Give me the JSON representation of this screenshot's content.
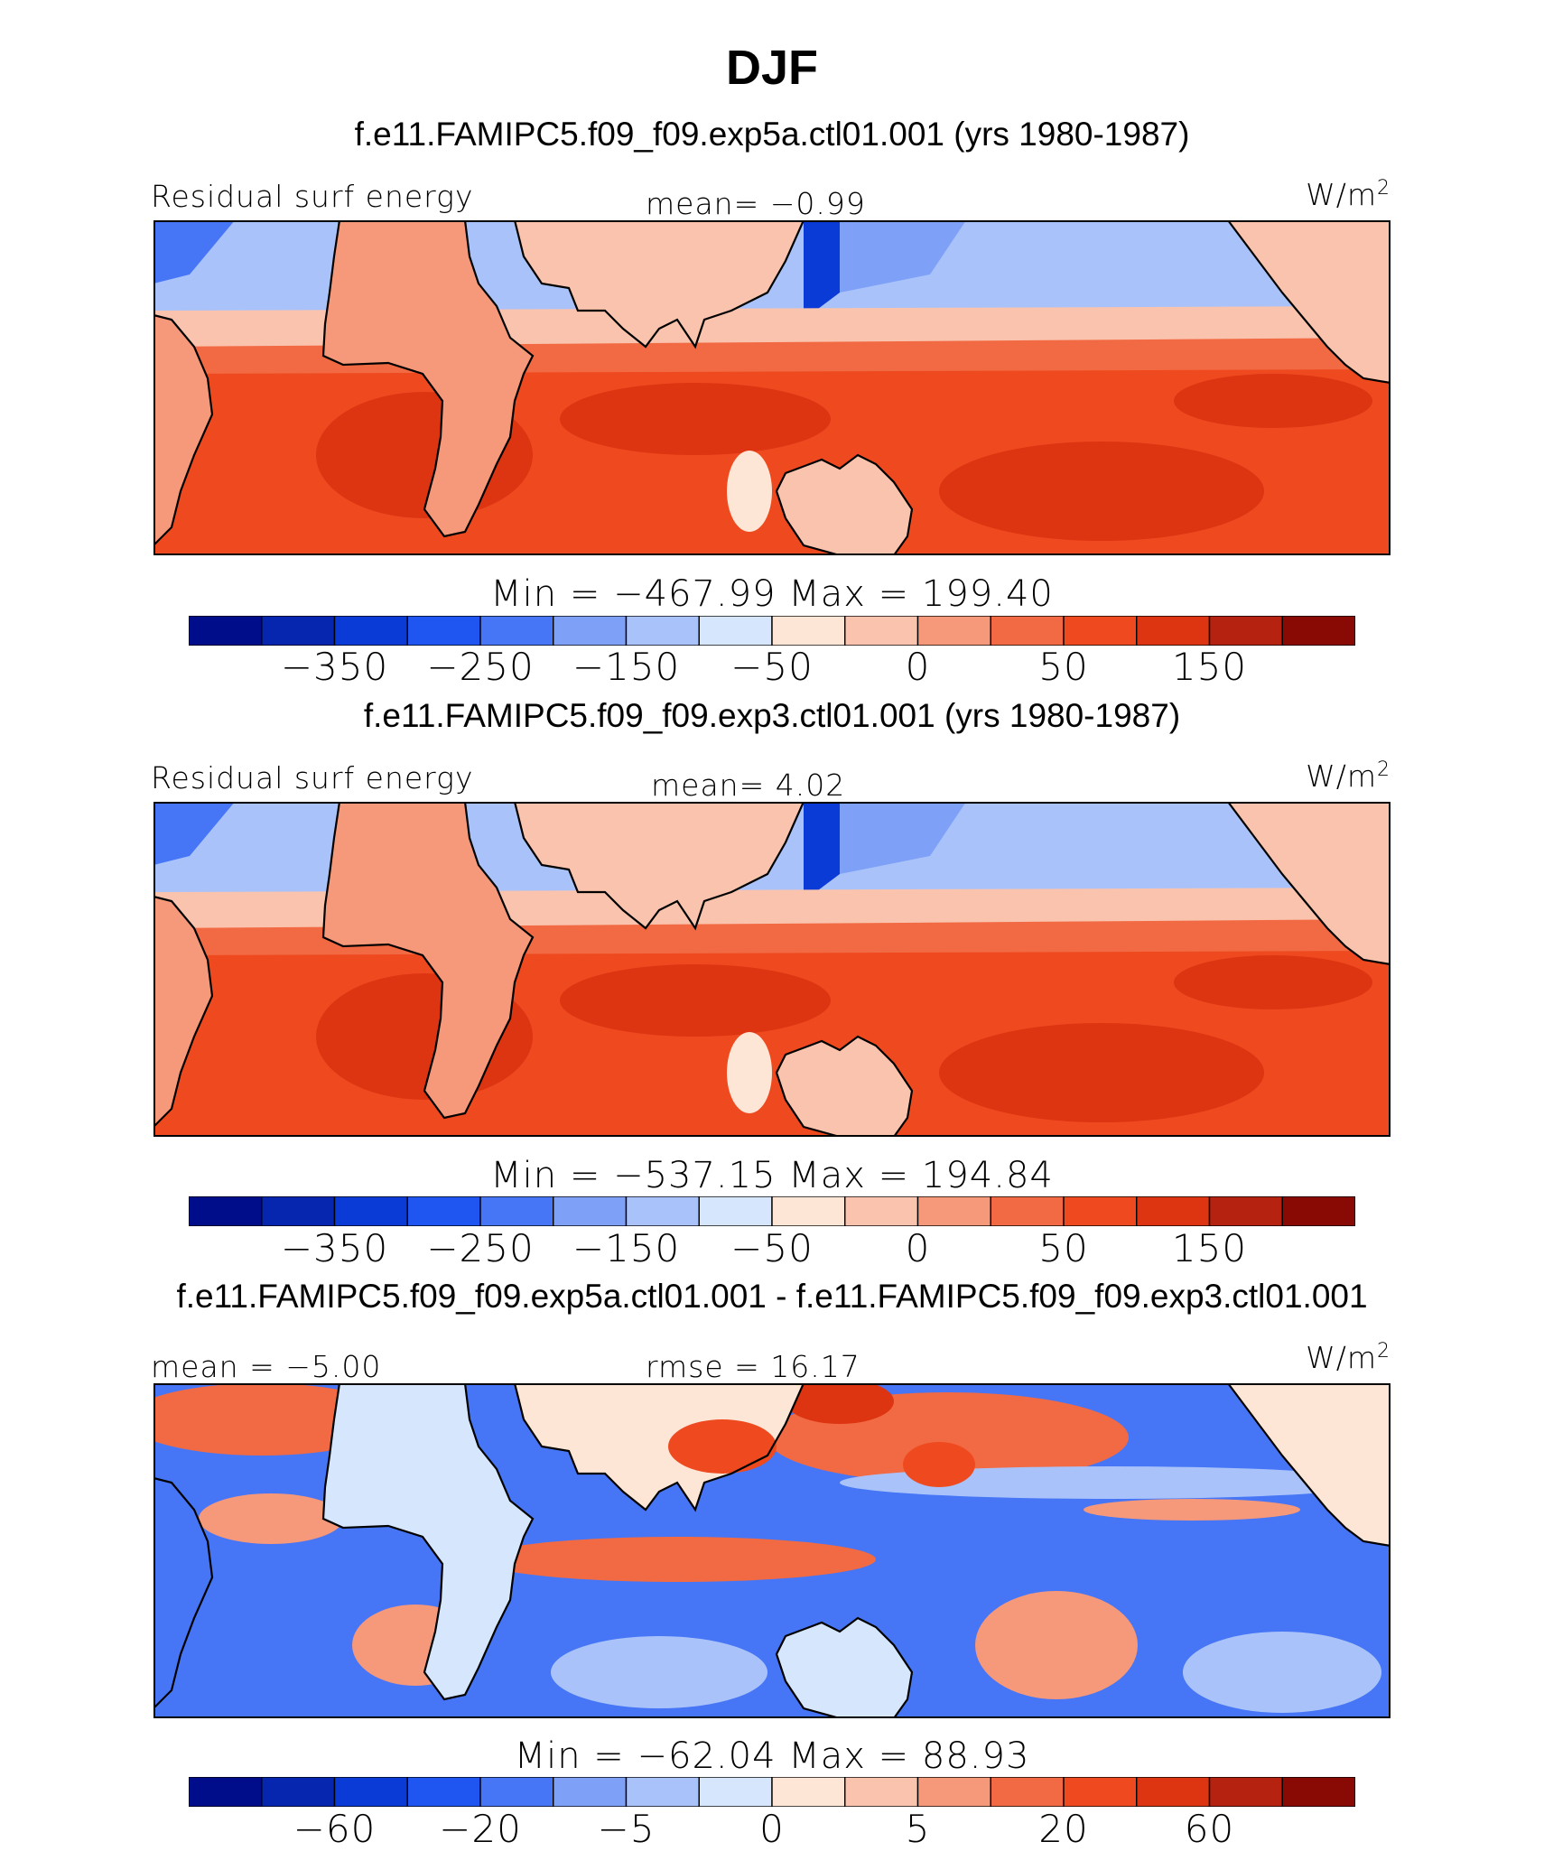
{
  "title": "DJF",
  "colors": {
    "palette": [
      "#000d8a",
      "#0626b0",
      "#0a3bd6",
      "#1f55f0",
      "#4676f5",
      "#7ea0f6",
      "#a9c3fa",
      "#d6e6fd",
      "#fde6d6",
      "#fac3ad",
      "#f6987a",
      "#f26a43",
      "#ef4a1f",
      "#dd3412",
      "#b52210",
      "#890a05"
    ],
    "coast": "#000000"
  },
  "chart_data": [
    {
      "type": "heatmap",
      "title": "f.e11.FAMIPC5.f09_f09.exp5a.ctl01.001 (yrs 1980-1987)",
      "left_label": "Residual surf energy",
      "mid_label": "mean=   −0.99",
      "unit_base": "W/m",
      "unit_sup": "2",
      "minmax": "Min  =  −467.99  Max  =  199.40",
      "tick_labels": [
        "−350",
        "−250",
        "−150",
        "−50",
        "0",
        "50",
        "150"
      ]
    },
    {
      "type": "heatmap",
      "title": "f.e11.FAMIPC5.f09_f09.exp3.ctl01.001 (yrs 1980-1987)",
      "left_label": "Residual surf energy",
      "mid_label": "mean=    4.02",
      "unit_base": "W/m",
      "unit_sup": "2",
      "minmax": "Min  =  −537.15  Max  =  194.84",
      "tick_labels": [
        "−350",
        "−250",
        "−150",
        "−50",
        "0",
        "50",
        "150"
      ]
    },
    {
      "type": "heatmap",
      "title": "f.e11.FAMIPC5.f09_f09.exp5a.ctl01.001 - f.e11.FAMIPC5.f09_f09.exp3.ctl01.001",
      "left_label": "mean  =   −5.00",
      "mid_label": "rmse  =   16.17",
      "unit_base": "W/m",
      "unit_sup": "2",
      "minmax": "Min  =  −62.04  Max  =   88.93",
      "tick_labels": [
        "−60",
        "−20",
        "−5",
        "0",
        "5",
        "20",
        "60"
      ]
    }
  ]
}
